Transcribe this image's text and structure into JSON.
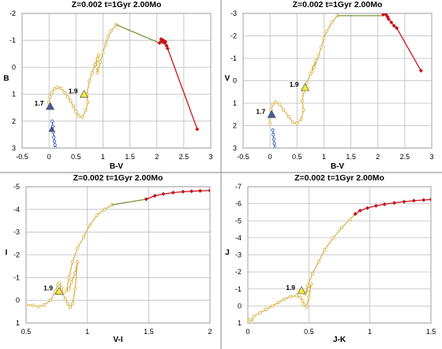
{
  "chart_data": [
    {
      "type": "line",
      "title": "Z=0.002  t=1Gyr  2.00Mo",
      "xlabel": "B-V",
      "ylabel": "B",
      "xlim": [
        -0.5,
        3
      ],
      "ylim": [
        -2,
        3
      ],
      "y_inverted": true,
      "xticks": [
        -0.5,
        0,
        0.5,
        1,
        1.5,
        2,
        2.5,
        3
      ],
      "xtick_labels": [
        "-0.5",
        "0",
        "0.5",
        "1",
        "1.5",
        "2",
        "2.5",
        "3"
      ],
      "yticks": [
        -2,
        -1,
        0,
        1,
        2,
        3
      ],
      "ytick_labels": [
        "-2",
        "-1",
        "0",
        "1",
        "2",
        "3"
      ],
      "grid": true,
      "series": [
        {
          "color": "#3a66b8",
          "marker": "dot",
          "x": [
            0.06,
            0.07,
            0.08,
            0.09,
            0.1,
            0.11,
            0.12
          ],
          "y": [
            2.0,
            2.2,
            2.4,
            2.6,
            2.75,
            2.88,
            3.0
          ]
        },
        {
          "color": "#d9b44a",
          "marker": "dot",
          "x": [
            0.0,
            0.02,
            0.05,
            0.1,
            0.15,
            0.22,
            0.3,
            0.35,
            0.4,
            0.45,
            0.5,
            0.55,
            0.62,
            0.68,
            0.72,
            0.7,
            0.75,
            0.8,
            0.85,
            0.9,
            0.92,
            0.9,
            0.88,
            0.9,
            0.95,
            1.0,
            1.05,
            1.1,
            1.15,
            1.25
          ],
          "y": [
            1.3,
            1.1,
            0.95,
            0.8,
            0.75,
            0.78,
            0.95,
            1.1,
            1.25,
            1.45,
            1.65,
            1.8,
            1.85,
            1.6,
            1.3,
            1.0,
            0.5,
            0.2,
            -0.1,
            -0.35,
            -0.45,
            -0.3,
            0.0,
            0.2,
            -0.2,
            -0.55,
            -0.85,
            -1.15,
            -1.35,
            -1.58
          ]
        },
        {
          "color": "#7a9a3a",
          "marker": "none",
          "x": [
            1.25,
            2.05
          ],
          "y": [
            -1.58,
            -0.9
          ]
        },
        {
          "color": "#c8141e",
          "marker": "diamond",
          "x": [
            2.05,
            2.08,
            2.1,
            2.12,
            2.14,
            2.16,
            2.18,
            2.2,
            2.75
          ],
          "y": [
            -0.9,
            -1.05,
            -0.95,
            -1.0,
            -0.9,
            -0.95,
            -0.8,
            -0.7,
            2.3
          ]
        }
      ],
      "markers": [
        {
          "label": "1.7",
          "x": 0.02,
          "y": 1.45,
          "color": "#4a5a9a"
        },
        {
          "label": "1.9",
          "x": 0.65,
          "y": 1.0,
          "color": "#f4ea38"
        }
      ],
      "extra_markers": [
        {
          "x": 0.05,
          "y": 2.3,
          "color": "#4a5a9a"
        }
      ]
    },
    {
      "type": "line",
      "title": "Z=0.002  t=1Gyr  2.00Mo",
      "xlabel": "B-V",
      "ylabel": "V",
      "xlim": [
        -0.5,
        3
      ],
      "ylim": [
        -3,
        3
      ],
      "y_inverted": true,
      "xticks": [
        -0.5,
        0,
        0.5,
        1,
        1.5,
        2,
        2.5,
        3
      ],
      "xtick_labels": [
        "-0.5",
        "0",
        "0.5",
        "1",
        "1.5",
        "2",
        "2.5",
        "3"
      ],
      "yticks": [
        -3,
        -2,
        -1,
        0,
        1,
        2,
        3
      ],
      "ytick_labels": [
        "-3",
        "-2",
        "-1",
        "0",
        "1",
        "2",
        "3"
      ],
      "grid": true,
      "series": [
        {
          "color": "#3a66b8",
          "marker": "dot",
          "x": [
            0.05,
            0.06,
            0.07,
            0.08,
            0.09
          ],
          "y": [
            2.2,
            2.4,
            2.6,
            2.8,
            3.0
          ]
        },
        {
          "color": "#d9b44a",
          "marker": "dot",
          "x": [
            0.0,
            0.0,
            0.02,
            0.05,
            0.1,
            0.18,
            0.25,
            0.35,
            0.42,
            0.5,
            0.58,
            0.62,
            0.6,
            0.62,
            0.68,
            0.75,
            0.8,
            0.85,
            0.78,
            0.82,
            0.9,
            0.95,
            1.0,
            1.05,
            1.15,
            1.25
          ],
          "y": [
            1.9,
            1.6,
            1.3,
            1.05,
            0.95,
            1.05,
            1.3,
            1.6,
            1.85,
            1.9,
            1.7,
            1.3,
            0.9,
            0.5,
            0.1,
            -0.3,
            -0.6,
            -0.9,
            -0.4,
            -0.6,
            -1.1,
            -1.5,
            -1.9,
            -2.2,
            -2.6,
            -2.9
          ]
        },
        {
          "color": "#7a9a3a",
          "marker": "none",
          "x": [
            1.25,
            2.1
          ],
          "y": [
            -2.9,
            -2.9
          ]
        },
        {
          "color": "#c8141e",
          "marker": "diamond",
          "x": [
            2.1,
            2.15,
            2.18,
            2.2,
            2.25,
            2.3,
            2.35,
            2.8
          ],
          "y": [
            -2.95,
            -2.95,
            -2.85,
            -2.75,
            -2.6,
            -2.45,
            -2.35,
            -0.45
          ]
        }
      ],
      "markers": [
        {
          "label": "1.7",
          "x": 0.03,
          "y": 1.5,
          "color": "#4a5a9a"
        },
        {
          "label": "1.9",
          "x": 0.65,
          "y": 0.3,
          "color": "#f4ea38"
        }
      ],
      "extra_markers": []
    },
    {
      "type": "line",
      "title": "Z=0.002  t=1Gyr  2.00Mo",
      "xlabel": "V-I",
      "ylabel": "I",
      "xlim": [
        0.5,
        2
      ],
      "ylim": [
        -5,
        1
      ],
      "y_inverted": true,
      "xticks": [
        0.5,
        1,
        1.5,
        2
      ],
      "xtick_labels": [
        "0.5",
        "1",
        "1.5",
        "2"
      ],
      "yticks": [
        -5,
        -4,
        -3,
        -2,
        -1,
        0,
        1
      ],
      "ytick_labels": [
        "-5",
        "-4",
        "-3",
        "-2",
        "-1",
        "0",
        "1"
      ],
      "grid": true,
      "series": [
        {
          "color": "#d9b44a",
          "marker": "dot",
          "x": [
            0.5,
            0.55,
            0.6,
            0.65,
            0.7,
            0.74,
            0.76,
            0.77,
            0.79,
            0.8,
            0.82,
            0.84,
            0.86,
            0.88,
            0.9,
            0.92,
            0.9,
            0.87,
            0.85,
            0.83,
            0.85,
            0.88,
            0.92,
            0.97,
            1.02,
            1.08,
            1.14,
            1.2
          ],
          "y": [
            0.2,
            0.22,
            0.28,
            0.2,
            0.0,
            -0.4,
            -0.7,
            -0.75,
            -0.55,
            -0.3,
            -0.05,
            0.15,
            0.3,
            0.15,
            -0.5,
            -1.7,
            -1.2,
            -0.8,
            -0.5,
            -0.4,
            -1.0,
            -1.7,
            -2.3,
            -2.8,
            -3.3,
            -3.75,
            -4.0,
            -4.2
          ]
        },
        {
          "color": "#7a9a3a",
          "marker": "none",
          "x": [
            1.2,
            1.48
          ],
          "y": [
            -4.2,
            -4.45
          ]
        },
        {
          "color": "#c8141e",
          "marker": "diamond",
          "x": [
            1.48,
            1.55,
            1.62,
            1.7,
            1.78,
            1.85,
            1.92,
            2.0
          ],
          "y": [
            -4.45,
            -4.6,
            -4.68,
            -4.74,
            -4.78,
            -4.8,
            -4.82,
            -4.83
          ]
        }
      ],
      "markers": [
        {
          "label": "1.9",
          "x": 0.77,
          "y": -0.4,
          "color": "#f4ea38"
        }
      ],
      "extra_markers": []
    },
    {
      "type": "line",
      "title": "Z=0.002  t=1Gyr  2.00Mo",
      "xlabel": "J-K",
      "ylabel": "J",
      "xlim": [
        0,
        1.5
      ],
      "ylim": [
        -7,
        1
      ],
      "y_inverted": true,
      "xticks": [
        0,
        0.5,
        1,
        1.5
      ],
      "xtick_labels": [
        "0",
        "0.5",
        "1",
        "1.5"
      ],
      "yticks": [
        -7,
        -6,
        -5,
        -4,
        -3,
        -2,
        -1,
        0,
        1
      ],
      "ytick_labels": [
        "-7",
        "-6",
        "-5",
        "-4",
        "-3",
        "-2",
        "-1",
        "0",
        "1"
      ],
      "grid": true,
      "series": [
        {
          "color": "#d9b44a",
          "marker": "dot",
          "x": [
            0.02,
            0.03,
            0.05,
            0.1,
            0.15,
            0.2,
            0.25,
            0.3,
            0.35,
            0.4,
            0.43,
            0.45,
            0.46,
            0.48,
            0.5,
            0.52,
            0.5,
            0.47,
            0.49,
            0.53,
            0.58,
            0.63,
            0.7,
            0.77,
            0.84,
            0.88
          ],
          "y": [
            0.8,
            0.95,
            0.6,
            0.4,
            0.2,
            0.0,
            -0.2,
            -0.4,
            -0.55,
            -0.6,
            -0.5,
            -0.3,
            -0.1,
            0.05,
            -0.5,
            -1.3,
            -1.0,
            -0.7,
            -1.2,
            -1.9,
            -2.6,
            -3.3,
            -4.0,
            -4.6,
            -5.1,
            -5.4
          ]
        },
        {
          "color": "#c8141e",
          "marker": "diamond",
          "x": [
            0.88,
            0.92,
            0.98,
            1.05,
            1.12,
            1.2,
            1.28,
            1.36,
            1.44,
            1.5
          ],
          "y": [
            -5.4,
            -5.6,
            -5.75,
            -5.88,
            -5.97,
            -6.05,
            -6.12,
            -6.18,
            -6.22,
            -6.25
          ]
        }
      ],
      "markers": [
        {
          "label": "1.9",
          "x": 0.44,
          "y": -0.9,
          "color": "#f4ea38"
        }
      ],
      "extra_markers": []
    }
  ]
}
